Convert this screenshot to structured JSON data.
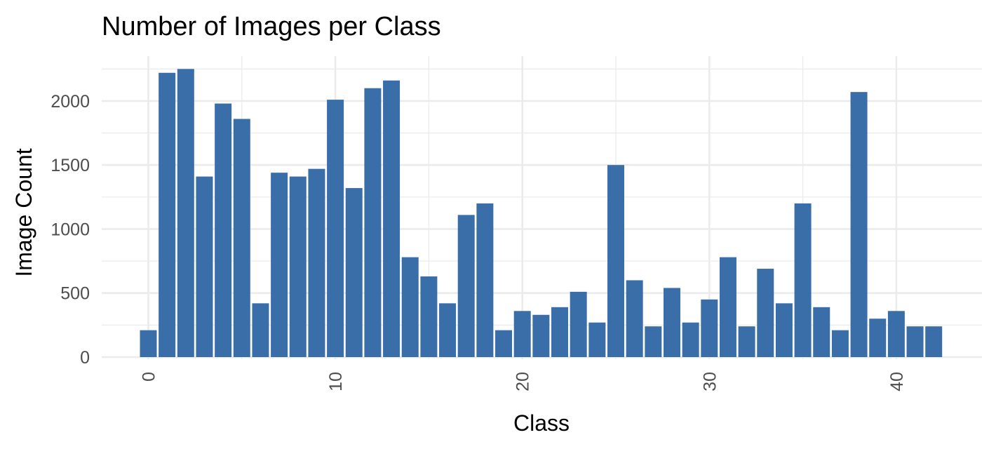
{
  "chart_data": {
    "type": "bar",
    "title": "Number of Images per Class",
    "xlabel": "Class",
    "ylabel": "Image Count",
    "x": [
      0,
      1,
      2,
      3,
      4,
      5,
      6,
      7,
      8,
      9,
      10,
      11,
      12,
      13,
      14,
      15,
      16,
      17,
      18,
      19,
      20,
      21,
      22,
      23,
      24,
      25,
      26,
      27,
      28,
      29,
      30,
      31,
      32,
      33,
      34,
      35,
      36,
      37,
      38,
      39,
      40,
      41,
      42
    ],
    "values": [
      210,
      2220,
      2250,
      1410,
      1980,
      1860,
      420,
      1440,
      1410,
      1470,
      2010,
      1320,
      2100,
      2160,
      780,
      630,
      420,
      1110,
      1200,
      210,
      360,
      330,
      390,
      510,
      270,
      1500,
      600,
      240,
      540,
      270,
      450,
      780,
      240,
      690,
      420,
      1200,
      390,
      210,
      2070,
      300,
      360,
      240,
      240
    ],
    "x_ticks": [
      0,
      10,
      20,
      30,
      40
    ],
    "y_ticks": [
      0,
      500,
      1000,
      1500,
      2000
    ],
    "xlim": [
      -2.5,
      44.5
    ],
    "ylim": [
      0,
      2250
    ],
    "bar_color": "#3A6EA8",
    "grid": true,
    "legend": "none"
  }
}
